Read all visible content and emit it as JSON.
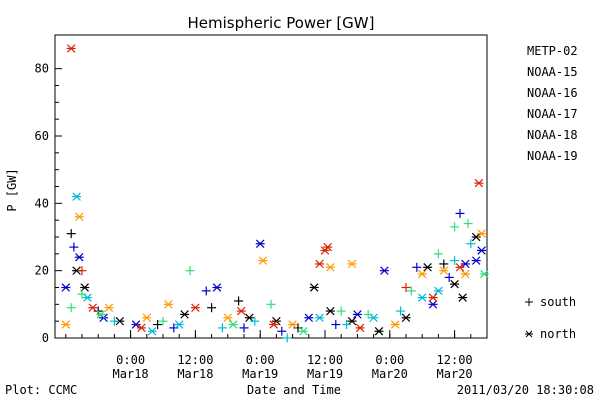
{
  "chart_data": {
    "type": "scatter",
    "title": "Hemispheric Power [GW]",
    "xlabel": "Date and Time",
    "ylabel": "P [GW]",
    "ylim": [
      0,
      90
    ],
    "yticks": [
      0,
      20,
      40,
      60,
      80
    ],
    "xlim": [
      "2011-03-17T10:00",
      "2011-03-20T18:00"
    ],
    "xticks": [
      {
        "t": "2011-03-18T00:00",
        "line1": "0:00",
        "line2": "Mar18"
      },
      {
        "t": "2011-03-18T12:00",
        "line1": "12:00",
        "line2": "Mar18"
      },
      {
        "t": "2011-03-19T00:00",
        "line1": "0:00",
        "line2": "Mar19"
      },
      {
        "t": "2011-03-19T12:00",
        "line1": "12:00",
        "line2": "Mar19"
      },
      {
        "t": "2011-03-20T00:00",
        "line1": "0:00",
        "line2": "Mar20"
      },
      {
        "t": "2011-03-20T12:00",
        "line1": "12:00",
        "line2": "Mar20"
      }
    ],
    "legend_position": "right",
    "marker_legend": [
      {
        "marker": "+",
        "label": "south"
      },
      {
        "marker": "*",
        "label": "north"
      }
    ],
    "series": [
      {
        "name": "METP-02",
        "color": "#000000",
        "points": [
          {
            "t": "2011-03-17T13:00",
            "y": 31,
            "m": "+"
          },
          {
            "t": "2011-03-17T14:00",
            "y": 20,
            "m": "*"
          },
          {
            "t": "2011-03-17T15:30",
            "y": 15,
            "m": "*"
          },
          {
            "t": "2011-03-17T18:00",
            "y": 8,
            "m": "+"
          },
          {
            "t": "2011-03-17T22:00",
            "y": 5,
            "m": "*"
          },
          {
            "t": "2011-03-18T05:00",
            "y": 4,
            "m": "+"
          },
          {
            "t": "2011-03-18T10:00",
            "y": 7,
            "m": "*"
          },
          {
            "t": "2011-03-18T15:00",
            "y": 9,
            "m": "+"
          },
          {
            "t": "2011-03-18T20:00",
            "y": 11,
            "m": "+"
          },
          {
            "t": "2011-03-18T22:00",
            "y": 6,
            "m": "*"
          },
          {
            "t": "2011-03-19T03:00",
            "y": 5,
            "m": "*"
          },
          {
            "t": "2011-03-19T07:00",
            "y": 3,
            "m": "+"
          },
          {
            "t": "2011-03-19T10:00",
            "y": 15,
            "m": "*"
          },
          {
            "t": "2011-03-19T13:00",
            "y": 8,
            "m": "*"
          },
          {
            "t": "2011-03-19T17:00",
            "y": 5,
            "m": "*"
          },
          {
            "t": "2011-03-19T22:00",
            "y": 2,
            "m": "*"
          },
          {
            "t": "2011-03-20T03:00",
            "y": 6,
            "m": "*"
          },
          {
            "t": "2011-03-20T07:00",
            "y": 21,
            "m": "*"
          },
          {
            "t": "2011-03-20T10:00",
            "y": 22,
            "m": "+"
          },
          {
            "t": "2011-03-20T12:00",
            "y": 16,
            "m": "*"
          },
          {
            "t": "2011-03-20T13:30",
            "y": 12,
            "m": "*"
          },
          {
            "t": "2011-03-20T16:00",
            "y": 30,
            "m": "*"
          }
        ]
      },
      {
        "name": "NOAA-15",
        "color": "#0000cc",
        "points": [
          {
            "t": "2011-03-17T12:00",
            "y": 15,
            "m": "*"
          },
          {
            "t": "2011-03-17T13:30",
            "y": 27,
            "m": "+"
          },
          {
            "t": "2011-03-17T14:30",
            "y": 24,
            "m": "*"
          },
          {
            "t": "2011-03-17T19:00",
            "y": 6,
            "m": "*"
          },
          {
            "t": "2011-03-18T01:00",
            "y": 4,
            "m": "*"
          },
          {
            "t": "2011-03-18T08:00",
            "y": 3,
            "m": "+"
          },
          {
            "t": "2011-03-18T14:00",
            "y": 14,
            "m": "+"
          },
          {
            "t": "2011-03-18T16:00",
            "y": 15,
            "m": "*"
          },
          {
            "t": "2011-03-18T21:00",
            "y": 3,
            "m": "+"
          },
          {
            "t": "2011-03-19T00:00",
            "y": 28,
            "m": "*"
          },
          {
            "t": "2011-03-19T04:00",
            "y": 2,
            "m": "+"
          },
          {
            "t": "2011-03-19T09:00",
            "y": 6,
            "m": "*"
          },
          {
            "t": "2011-03-19T14:00",
            "y": 4,
            "m": "+"
          },
          {
            "t": "2011-03-19T18:00",
            "y": 7,
            "m": "*"
          },
          {
            "t": "2011-03-19T23:00",
            "y": 20,
            "m": "*"
          },
          {
            "t": "2011-03-20T05:00",
            "y": 21,
            "m": "+"
          },
          {
            "t": "2011-03-20T08:00",
            "y": 10,
            "m": "*"
          },
          {
            "t": "2011-03-20T11:00",
            "y": 18,
            "m": "+"
          },
          {
            "t": "2011-03-20T13:00",
            "y": 37,
            "m": "+"
          },
          {
            "t": "2011-03-20T14:00",
            "y": 22,
            "m": "*"
          },
          {
            "t": "2011-03-20T16:00",
            "y": 23,
            "m": "*"
          },
          {
            "t": "2011-03-20T17:00",
            "y": 26,
            "m": "*"
          }
        ]
      },
      {
        "name": "NOAA-16",
        "color": "#00bbdd",
        "points": [
          {
            "t": "2011-03-17T14:00",
            "y": 42,
            "m": "*"
          },
          {
            "t": "2011-03-17T16:00",
            "y": 12,
            "m": "*"
          },
          {
            "t": "2011-03-17T21:00",
            "y": 5,
            "m": "+"
          },
          {
            "t": "2011-03-18T04:00",
            "y": 2,
            "m": "*"
          },
          {
            "t": "2011-03-18T09:00",
            "y": 4,
            "m": "*"
          },
          {
            "t": "2011-03-18T17:00",
            "y": 3,
            "m": "+"
          },
          {
            "t": "2011-03-18T23:00",
            "y": 5,
            "m": "+"
          },
          {
            "t": "2011-03-19T05:00",
            "y": 0,
            "m": "+"
          },
          {
            "t": "2011-03-19T11:00",
            "y": 6,
            "m": "*"
          },
          {
            "t": "2011-03-19T16:00",
            "y": 4,
            "m": "+"
          },
          {
            "t": "2011-03-19T21:00",
            "y": 6,
            "m": "*"
          },
          {
            "t": "2011-03-20T02:00",
            "y": 8,
            "m": "+"
          },
          {
            "t": "2011-03-20T06:00",
            "y": 12,
            "m": "*"
          },
          {
            "t": "2011-03-20T09:00",
            "y": 14,
            "m": "*"
          },
          {
            "t": "2011-03-20T12:00",
            "y": 23,
            "m": "+"
          },
          {
            "t": "2011-03-20T15:00",
            "y": 28,
            "m": "+"
          }
        ]
      },
      {
        "name": "NOAA-17",
        "color": "#33dd77",
        "points": [
          {
            "t": "2011-03-17T13:00",
            "y": 9,
            "m": "+"
          },
          {
            "t": "2011-03-17T15:00",
            "y": 13,
            "m": "+"
          },
          {
            "t": "2011-03-17T18:30",
            "y": 7,
            "m": "*"
          },
          {
            "t": "2011-03-18T06:00",
            "y": 5,
            "m": "+"
          },
          {
            "t": "2011-03-18T11:00",
            "y": 20,
            "m": "+"
          },
          {
            "t": "2011-03-18T19:00",
            "y": 4,
            "m": "*"
          },
          {
            "t": "2011-03-19T02:00",
            "y": 10,
            "m": "+"
          },
          {
            "t": "2011-03-19T08:00",
            "y": 2,
            "m": "*"
          },
          {
            "t": "2011-03-19T15:00",
            "y": 8,
            "m": "+"
          },
          {
            "t": "2011-03-19T20:00",
            "y": 7,
            "m": "+"
          },
          {
            "t": "2011-03-20T04:00",
            "y": 14,
            "m": "+"
          },
          {
            "t": "2011-03-20T09:00",
            "y": 25,
            "m": "+"
          },
          {
            "t": "2011-03-20T12:00",
            "y": 33,
            "m": "+"
          },
          {
            "t": "2011-03-20T14:30",
            "y": 34,
            "m": "+"
          },
          {
            "t": "2011-03-20T17:30",
            "y": 19,
            "m": "*"
          }
        ]
      },
      {
        "name": "NOAA-18",
        "color": "#ff9900",
        "points": [
          {
            "t": "2011-03-17T12:00",
            "y": 4,
            "m": "*"
          },
          {
            "t": "2011-03-17T14:30",
            "y": 36,
            "m": "*"
          },
          {
            "t": "2011-03-17T20:00",
            "y": 9,
            "m": "*"
          },
          {
            "t": "2011-03-18T03:00",
            "y": 6,
            "m": "*"
          },
          {
            "t": "2011-03-18T07:00",
            "y": 10,
            "m": "*"
          },
          {
            "t": "2011-03-18T18:00",
            "y": 6,
            "m": "*"
          },
          {
            "t": "2011-03-19T00:30",
            "y": 23,
            "m": "*"
          },
          {
            "t": "2011-03-19T06:00",
            "y": 4,
            "m": "*"
          },
          {
            "t": "2011-03-19T13:00",
            "y": 21,
            "m": "*"
          },
          {
            "t": "2011-03-19T17:00",
            "y": 22,
            "m": "*"
          },
          {
            "t": "2011-03-20T01:00",
            "y": 4,
            "m": "*"
          },
          {
            "t": "2011-03-20T06:00",
            "y": 19,
            "m": "*"
          },
          {
            "t": "2011-03-20T10:00",
            "y": 20,
            "m": "*"
          },
          {
            "t": "2011-03-20T14:00",
            "y": 19,
            "m": "*"
          },
          {
            "t": "2011-03-20T17:00",
            "y": 31,
            "m": "*"
          }
        ]
      },
      {
        "name": "NOAA-19",
        "color": "#dd2200",
        "points": [
          {
            "t": "2011-03-17T13:00",
            "y": 86,
            "m": "*"
          },
          {
            "t": "2011-03-17T15:00",
            "y": 20,
            "m": "+"
          },
          {
            "t": "2011-03-17T17:00",
            "y": 9,
            "m": "*"
          },
          {
            "t": "2011-03-18T02:00",
            "y": 3,
            "m": "*"
          },
          {
            "t": "2011-03-18T12:00",
            "y": 9,
            "m": "*"
          },
          {
            "t": "2011-03-18T20:30",
            "y": 8,
            "m": "*"
          },
          {
            "t": "2011-03-19T02:30",
            "y": 4,
            "m": "*"
          },
          {
            "t": "2011-03-19T11:00",
            "y": 22,
            "m": "*"
          },
          {
            "t": "2011-03-19T12:00",
            "y": 26,
            "m": "*"
          },
          {
            "t": "2011-03-19T12:30",
            "y": 27,
            "m": "*"
          },
          {
            "t": "2011-03-19T18:30",
            "y": 3,
            "m": "*"
          },
          {
            "t": "2011-03-20T03:00",
            "y": 15,
            "m": "+"
          },
          {
            "t": "2011-03-20T08:00",
            "y": 12,
            "m": "*"
          },
          {
            "t": "2011-03-20T13:00",
            "y": 21,
            "m": "*"
          },
          {
            "t": "2011-03-20T16:30",
            "y": 46,
            "m": "*"
          }
        ]
      }
    ]
  },
  "footer": {
    "plot_label": "Plot: CCMC",
    "timestamp": "2011/03/20 18:30:08"
  }
}
